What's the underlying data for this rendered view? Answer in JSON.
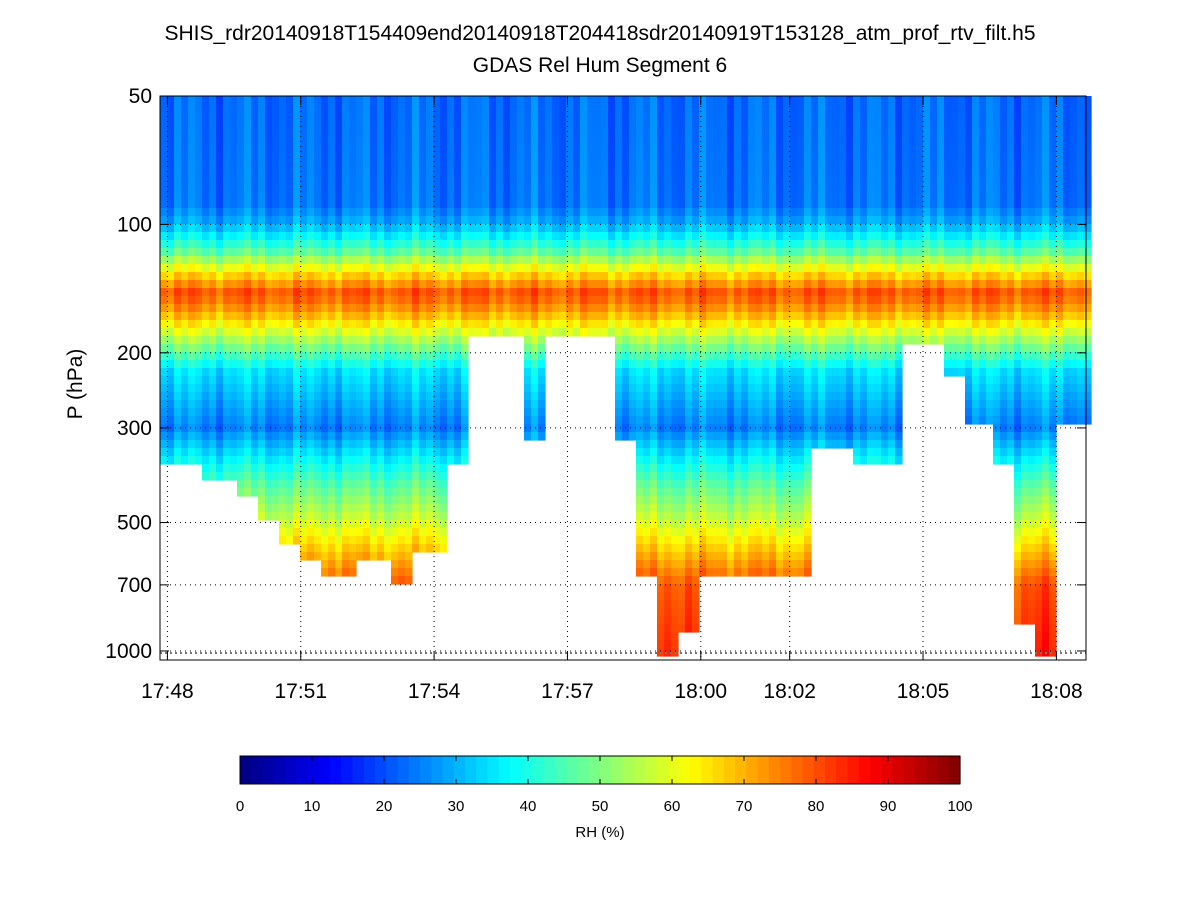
{
  "chart_data": [
    {
      "type": "heatmap",
      "title": "SHIS_rdr20140918T154409end20140918T204418sdr20140919T153128_atm_prof_rtv_filt.h5",
      "subtitle": "GDAS Rel Hum Segment 6",
      "xlabel": "",
      "ylabel": "P (hPa)",
      "yscale": "log",
      "yreversed": true,
      "xlim": [
        "17:47:50",
        "18:08:40"
      ],
      "ylim": [
        1050,
        50
      ],
      "xticks": [
        "17:48",
        "17:51",
        "17:54",
        "17:57",
        "18:00",
        "18:02",
        "18:05",
        "18:08"
      ],
      "yticks": [
        50,
        100,
        200,
        300,
        500,
        700,
        1000
      ],
      "grid": true,
      "missing_color": "#ffffff",
      "profile_bottom_hPa_by_time": [
        {
          "t": "17:48",
          "p": 360
        },
        {
          "t": "17:48:45",
          "p": 400
        },
        {
          "t": "17:49:30",
          "p": 440
        },
        {
          "t": "17:50",
          "p": 500
        },
        {
          "t": "17:50:30",
          "p": 560
        },
        {
          "t": "17:51",
          "p": 600
        },
        {
          "t": "17:51:30",
          "p": 680
        },
        {
          "t": "17:52:15",
          "p": 600
        },
        {
          "t": "17:53",
          "p": 700
        },
        {
          "t": "17:53:30",
          "p": 580
        },
        {
          "t": "17:54:15",
          "p": 360
        },
        {
          "t": "17:54:45",
          "p": 180
        },
        {
          "t": "17:55:30",
          "p": 185
        },
        {
          "t": "17:56",
          "p": 320
        },
        {
          "t": "17:56:30",
          "p": 185
        },
        {
          "t": "17:58",
          "p": 320
        },
        {
          "t": "17:58:30",
          "p": 660
        },
        {
          "t": "17:59",
          "p": 1040
        },
        {
          "t": "17:59:30",
          "p": 900
        },
        {
          "t": "18:00",
          "p": 680
        },
        {
          "t": "18:01",
          "p": 660
        },
        {
          "t": "18:02",
          "p": 660
        },
        {
          "t": "18:02:30",
          "p": 340
        },
        {
          "t": "18:03:30",
          "p": 360
        },
        {
          "t": "18:04:30",
          "p": 190
        },
        {
          "t": "18:05:30",
          "p": 230
        },
        {
          "t": "18:06",
          "p": 290
        },
        {
          "t": "18:06:30",
          "p": 360
        },
        {
          "t": "18:07",
          "p": 880
        },
        {
          "t": "18:07:30",
          "p": 1040
        },
        {
          "t": "18:08",
          "p": 300
        }
      ],
      "rh_vertical_structure_percent": [
        {
          "p": 50,
          "rh": 23
        },
        {
          "p": 90,
          "rh": 24
        },
        {
          "p": 100,
          "rh": 30
        },
        {
          "p": 115,
          "rh": 45
        },
        {
          "p": 130,
          "rh": 65
        },
        {
          "p": 145,
          "rh": 80
        },
        {
          "p": 160,
          "rh": 72
        },
        {
          "p": 185,
          "rh": 55
        },
        {
          "p": 220,
          "rh": 35
        },
        {
          "p": 300,
          "rh": 25
        },
        {
          "p": 400,
          "rh": 45
        },
        {
          "p": 500,
          "rh": 58
        },
        {
          "p": 600,
          "rh": 70
        },
        {
          "p": 700,
          "rh": 80
        },
        {
          "p": 1000,
          "rh": 84
        }
      ],
      "colorbar": {
        "label": "RH (%)",
        "range": [
          0,
          100
        ],
        "ticks": [
          0,
          10,
          20,
          30,
          40,
          50,
          60,
          70,
          80,
          90,
          100
        ],
        "colormap": "jet",
        "colors": [
          "#00008f",
          "#0000ff",
          "#0080ff",
          "#00ffff",
          "#80ff80",
          "#ffff00",
          "#ff8000",
          "#ff0000",
          "#800000"
        ]
      }
    }
  ]
}
